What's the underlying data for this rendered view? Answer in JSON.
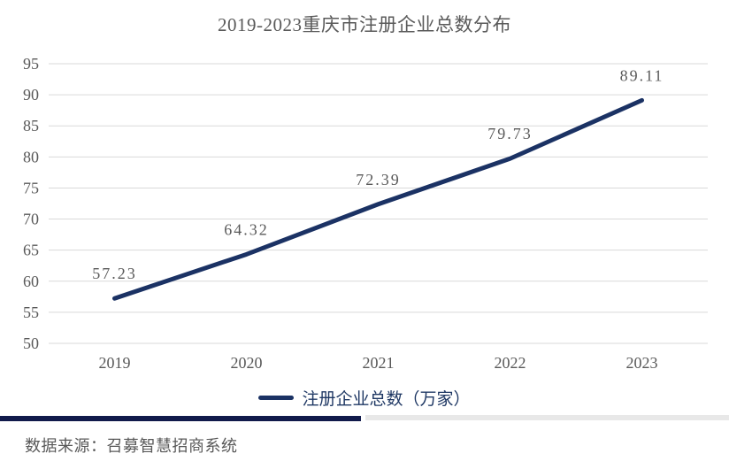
{
  "colors": {
    "line": "#1b3264",
    "legend_text": "#1f3864",
    "title_text": "#595959",
    "tick_text": "#595959",
    "data_label_text": "#595959",
    "grid": "#d9d9d9",
    "footer_bar": "#111a4b",
    "footer_bar_light": "#e8e8e8"
  },
  "footer": {
    "source_text": "数据来源：召募智慧招商系统"
  },
  "chart_data": {
    "type": "line",
    "title": "2019-2023重庆市注册企业总数分布",
    "categories": [
      "2019",
      "2020",
      "2021",
      "2022",
      "2023"
    ],
    "series": [
      {
        "name": "注册企业总数（万家）",
        "values": [
          57.23,
          64.32,
          72.39,
          79.73,
          89.11
        ]
      }
    ],
    "xlabel": "",
    "ylabel": "",
    "ylim": [
      50,
      95
    ],
    "ytick_step": 5,
    "grid": true,
    "legend_position": "bottom",
    "data_labels_shown": true
  }
}
